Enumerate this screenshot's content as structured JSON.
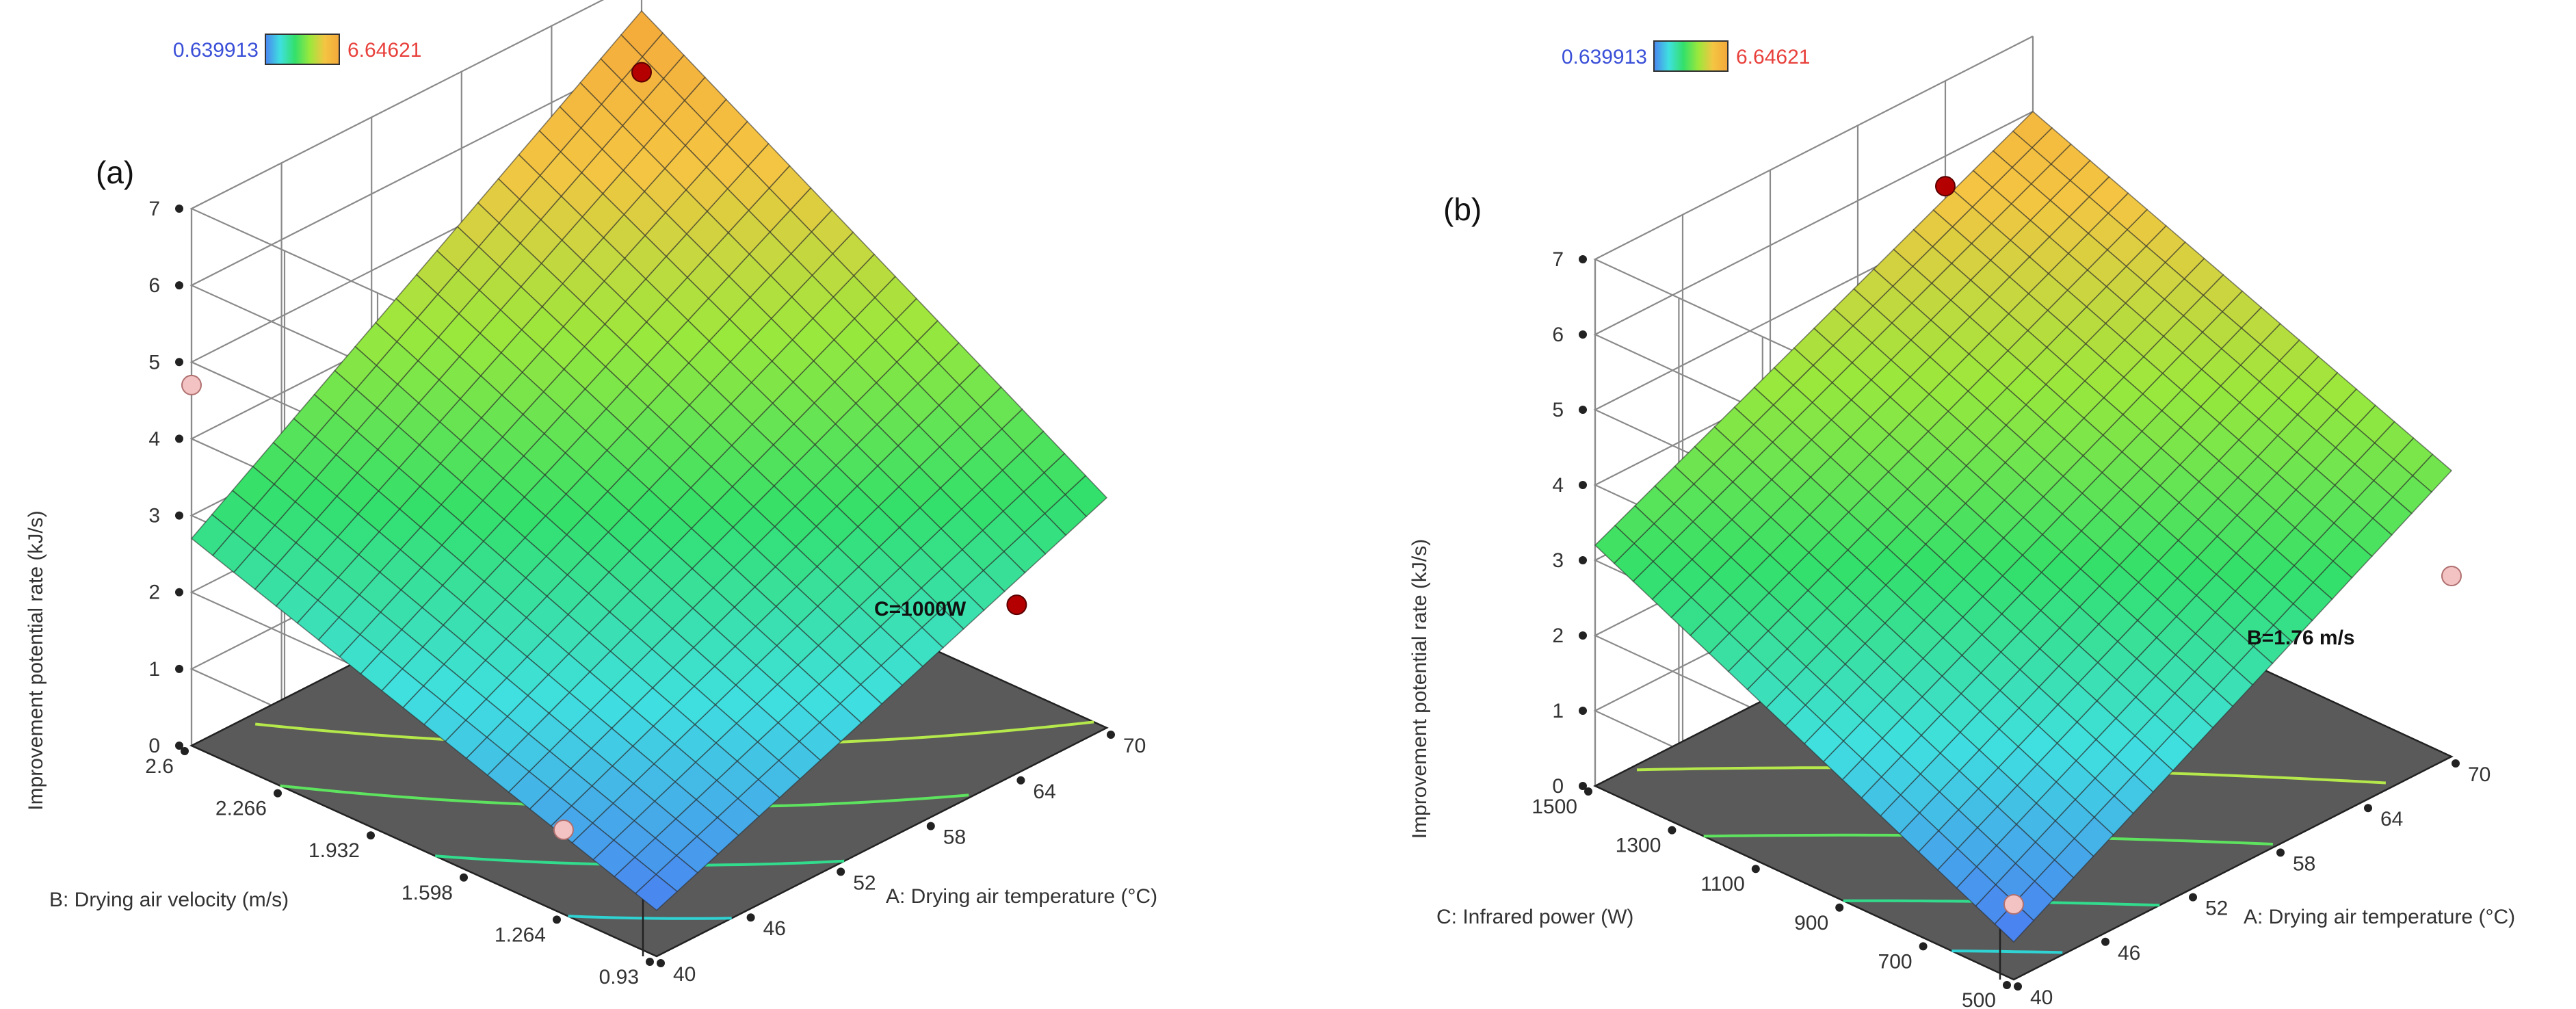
{
  "colors": {
    "bg": "#ffffff",
    "grid": "#8a8a8a",
    "floor": "#5a5a5a",
    "axis_text": "#333333",
    "legend_min": "#3a4fd8",
    "legend_max": "#e8413c",
    "point_dark": "#b40000",
    "point_light": "#f3c2c2",
    "surface_stops": [
      "#4a84f0",
      "#3fe0e0",
      "#33e06a",
      "#9ae83c",
      "#f4c542",
      "#f4a83a"
    ],
    "contour_stops": [
      "#2fd3d3",
      "#33e06a",
      "#b5e84a"
    ]
  },
  "chart_data": [
    {
      "type": "surface3d",
      "panel_label": "(a)",
      "legend": {
        "min_label": "0.639913",
        "max_label": "6.64621",
        "min": 0.639913,
        "max": 6.64621
      },
      "zlabel": "Improvement potential rate (kJ/s)",
      "z_ticks": [
        "0",
        "1",
        "2",
        "3",
        "4",
        "5",
        "6",
        "7"
      ],
      "zlim": [
        0,
        7
      ],
      "xlabel": "A: Drying air temperature  (°C)",
      "x_ticks": [
        "40",
        "46",
        "52",
        "58",
        "64",
        "70"
      ],
      "xlim": [
        40,
        70
      ],
      "ylabel": "B: Drying air velocity (m/s)",
      "y_ticks": [
        "0.93",
        "1.264",
        "1.598",
        "1.932",
        "2.266",
        "2.6"
      ],
      "ylim": [
        0.93,
        2.6
      ],
      "fixed_label": "C=1000W",
      "corner_values": {
        "x0y0": 0.6,
        "x1y0": 3.0,
        "x0y1": 2.7,
        "x1y1": 6.6
      },
      "contours": [
        1.0,
        1.6,
        2.3,
        3.1
      ],
      "points": [
        {
          "x": 70,
          "y": 2.6,
          "z": 5.8,
          "style": "dark"
        },
        {
          "x": 64,
          "y": 0.93,
          "z": 2.2,
          "style": "dark"
        },
        {
          "x": 40,
          "y": 2.6,
          "z": 4.7,
          "style": "light"
        },
        {
          "x": 40,
          "y": 1.264,
          "z": 1.1,
          "style": "light"
        }
      ]
    },
    {
      "type": "surface3d",
      "panel_label": "(b)",
      "legend": {
        "min_label": "0.639913",
        "max_label": "6.64621",
        "min": 0.639913,
        "max": 6.64621
      },
      "zlabel": "Improvement potential rate (kJ/s)",
      "z_ticks": [
        "0",
        "1",
        "2",
        "3",
        "4",
        "5",
        "6",
        "7"
      ],
      "zlim": [
        0,
        7
      ],
      "xlabel": "A: Drying air temperature  (°C)",
      "x_ticks": [
        "40",
        "46",
        "52",
        "58",
        "64",
        "70"
      ],
      "xlim": [
        40,
        70
      ],
      "ylabel": "C: Infrared power (W)",
      "y_ticks": [
        "500",
        "700",
        "900",
        "1100",
        "1300",
        "1500"
      ],
      "ylim": [
        500,
        1500
      ],
      "fixed_label": "B=1.76 m/s",
      "corner_values": {
        "x0y0": 0.5,
        "x1y0": 3.8,
        "x0y1": 3.2,
        "x1y1": 6.0
      },
      "contours": [
        0.9,
        1.6,
        2.5,
        3.4
      ],
      "points": [
        {
          "x": 64,
          "y": 1500,
          "z": 5.6,
          "style": "dark"
        },
        {
          "x": 40,
          "y": 500,
          "z": 1.0,
          "style": "light"
        },
        {
          "x": 70,
          "y": 500,
          "z": 2.4,
          "style": "light"
        }
      ]
    }
  ]
}
